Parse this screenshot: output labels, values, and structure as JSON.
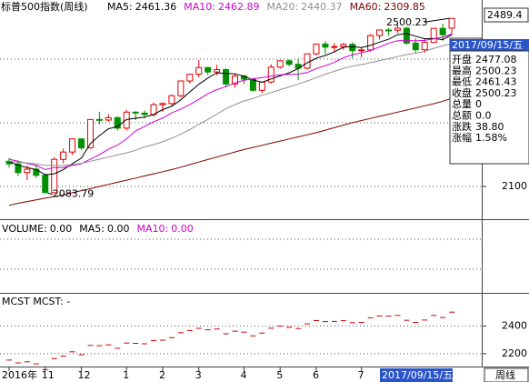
{
  "chart_data": {
    "type": "candlestick",
    "title": "标普500指数(周线)",
    "categories": [
      "2016年",
      null,
      null,
      null,
      "11",
      null,
      null,
      null,
      "12",
      null,
      null,
      null,
      null,
      "1",
      null,
      null,
      null,
      "2",
      null,
      null,
      null,
      "3",
      null,
      null,
      null,
      null,
      "4",
      null,
      null,
      null,
      "5",
      null,
      null,
      null,
      "6",
      null,
      null,
      null,
      null,
      "7",
      null,
      null,
      null,
      null,
      null,
      null,
      null,
      null,
      null,
      null
    ],
    "open": [
      2160,
      2153.74,
      2132.98,
      2141.16,
      2126.41,
      2085.18,
      2164.45,
      2181.9,
      2213.35,
      2191.95,
      2259.53,
      2258.07,
      2263.79,
      2238.83,
      2276.98,
      2274.64,
      2271.31,
      2294.69,
      2297.42,
      2316.1,
      2351.16,
      2367.34,
      2383.12,
      2372.6,
      2378.25,
      2343.98,
      2362.72,
      2355.54,
      2328.95,
      2348.69,
      2384.2,
      2399.29,
      2390.9,
      2381.73,
      2415.82,
      2439.07,
      2431.77,
      2433.15,
      2438.3,
      2423.41,
      2425.18,
      2459.27,
      2472.54,
      2472.1,
      2476.83,
      2441.32,
      2425.55,
      2443.05,
      2476.55,
      2477.08
    ],
    "high": [
      2168,
      2162,
      2150,
      2152,
      2130,
      2170,
      2190,
      2214,
      2214,
      2261,
      2278,
      2272,
      2267,
      2282,
      2279,
      2281,
      2300,
      2300,
      2319,
      2352,
      2368,
      2401,
      2385,
      2390,
      2382,
      2370,
      2366,
      2358,
      2350,
      2391,
      2400,
      2403,
      2405,
      2416,
      2440,
      2446,
      2441,
      2442,
      2443,
      2432,
      2463,
      2474,
      2477,
      2490,
      2480,
      2453,
      2451,
      2477,
      2488,
      2500.23
    ],
    "low": [
      2145,
      2125,
      2115,
      2120,
      2083.79,
      2084.5,
      2155,
      2175,
      2187,
      2190,
      2248,
      2254,
      2233,
      2233,
      2258,
      2262,
      2266,
      2278,
      2290,
      2312,
      2345,
      2360,
      2365,
      2365,
      2336,
      2335,
      2344,
      2326,
      2322,
      2345,
      2380,
      2386,
      2353,
      2378,
      2412,
      2415,
      2419,
      2425,
      2405,
      2407,
      2421,
      2450,
      2459,
      2465,
      2437,
      2417,
      2418,
      2442,
      2447,
      2461.43
    ],
    "close": [
      2153.74,
      2132.98,
      2141.16,
      2126.41,
      2085.18,
      2164.45,
      2181.9,
      2213.35,
      2191.95,
      2259.53,
      2258.07,
      2263.79,
      2238.83,
      2276.98,
      2274.64,
      2271.31,
      2294.69,
      2297.42,
      2316.1,
      2351.16,
      2367.34,
      2383.12,
      2372.6,
      2378.25,
      2343.98,
      2362.72,
      2355.54,
      2328.95,
      2348.69,
      2384.2,
      2399.29,
      2390.9,
      2381.73,
      2415.82,
      2439.07,
      2431.77,
      2433.15,
      2438.3,
      2423.41,
      2425.18,
      2459.27,
      2472.54,
      2472.1,
      2476.83,
      2441.32,
      2425.55,
      2443.05,
      2476.55,
      2461.43,
      2500.23
    ],
    "up_color": "#e00000",
    "down_color": "#009000",
    "series": [
      {
        "name": "MA5:",
        "color": "#000000",
        "values": [
          2160,
          2150,
          2145,
          2140,
          2127.9,
          2130.0,
          2139.8,
          2154.3,
          2167.4,
          2202.2,
          2221.0,
          2237.3,
          2242.4,
          2259.4,
          2262.5,
          2265.1,
          2271.3,
          2283.0,
          2290.8,
          2306.1,
          2325.3,
          2343.0,
          2358.1,
          2370.5,
          2369.1,
          2368.1,
          2362.6,
          2353.9,
          2348.0,
          2356.0,
          2363.3,
          2370.4,
          2381.0,
          2394.4,
          2405.4,
          2411.9,
          2420.3,
          2431.6,
          2433.1,
          2430.4,
          2435.9,
          2443.7,
          2450.5,
          2461.2,
          2464.4,
          2457.7,
          2451.8,
          2452.7,
          2449.6,
          2461.36
        ]
      },
      {
        "name": "MA10:",
        "color": "#d000d0",
        "values": [
          2165,
          2160,
          2155,
          2150,
          2140,
          2145,
          2145,
          2150,
          2154,
          2165.1,
          2175.5,
          2188.6,
          2198.4,
          2213.4,
          2232.4,
          2243.1,
          2254.3,
          2262.7,
          2275.1,
          2284.3,
          2295.2,
          2307.2,
          2320.6,
          2330.7,
          2337.6,
          2346.7,
          2352.8,
          2356.0,
          2359.3,
          2362.6,
          2365.7,
          2366.5,
          2367.5,
          2371.2,
          2380.7,
          2387.6,
          2395.4,
          2406.3,
          2413.8,
          2417.9,
          2423.9,
          2432.0,
          2441.1,
          2447.2,
          2447.4,
          2446.8,
          2447.8,
          2451.6,
          2455.4,
          2462.89
        ]
      },
      {
        "name": "MA20:",
        "color": "#909090",
        "values": [
          2160,
          2158,
          2156,
          2154,
          2150,
          2150,
          2150,
          2152,
          2155,
          2160,
          2165,
          2170,
          2175,
          2180,
          2186.2,
          2194.1,
          2199.7,
          2206.4,
          2214.6,
          2224.7,
          2235.4,
          2247.9,
          2259.5,
          2272.1,
          2285.0,
          2294.9,
          2303.6,
          2309.4,
          2317.2,
          2323.5,
          2330.5,
          2336.9,
          2344.1,
          2351.0,
          2359.2,
          2367.2,
          2374.1,
          2381.2,
          2386.6,
          2390.3,
          2394.8,
          2399.3,
          2404.3,
          2409.2,
          2414.1,
          2417.2,
          2421.6,
          2429.0,
          2434.6,
          2440.37
        ]
      },
      {
        "name": "MA60:",
        "color": "#800000",
        "values": [
          2055,
          2060,
          2064,
          2068,
          2072,
          2076,
          2080,
          2085,
          2090,
          2095,
          2100,
          2105,
          2110,
          2115,
          2120,
          2125,
          2130,
          2135,
          2140,
          2146,
          2152,
          2158,
          2164,
          2170,
          2176,
          2182,
          2188,
          2193,
          2198,
          2203,
          2208,
          2213,
          2218,
          2223,
          2228,
          2234,
          2240,
          2246,
          2252,
          2257,
          2262,
          2267,
          2272,
          2277,
          2282,
          2287,
          2292,
          2297,
          2303,
          2309.85
        ]
      }
    ],
    "ylim": [
      2022,
      2544
    ],
    "yticks": [
      2100
    ],
    "max_label": "2500.23",
    "min_label": "2083.79",
    "cursor_price": "2489.4",
    "volume_legend": [
      {
        "name": "VOLUME:",
        "value": "0.00",
        "color": "#000000"
      },
      {
        "name": "MA5:",
        "value": "0.00",
        "color": "#000000"
      },
      {
        "name": "MA10:",
        "value": "0.00",
        "color": "#d000d0"
      }
    ],
    "mcst_title": "MCST MCST: -",
    "mcst_color": "#d00000",
    "mcst_ylim": [
      2107,
      2633
    ],
    "mcst_yticks": [
      2200,
      2400
    ],
    "period": "周线",
    "info_box": {
      "date": "2017/09/15/五",
      "rows": [
        {
          "label": "开盘",
          "value": "2477.08"
        },
        {
          "label": "最高",
          "value": "2500.23"
        },
        {
          "label": "最低",
          "value": "2461.43"
        },
        {
          "label": "收盘",
          "value": "2500.23"
        },
        {
          "label": "总量",
          "value": "0"
        },
        {
          "label": "总额",
          "value": "0.0"
        },
        {
          "label": "涨跌",
          "value": "38.80"
        },
        {
          "label": "涨幅",
          "value": "1.58%"
        }
      ]
    }
  }
}
